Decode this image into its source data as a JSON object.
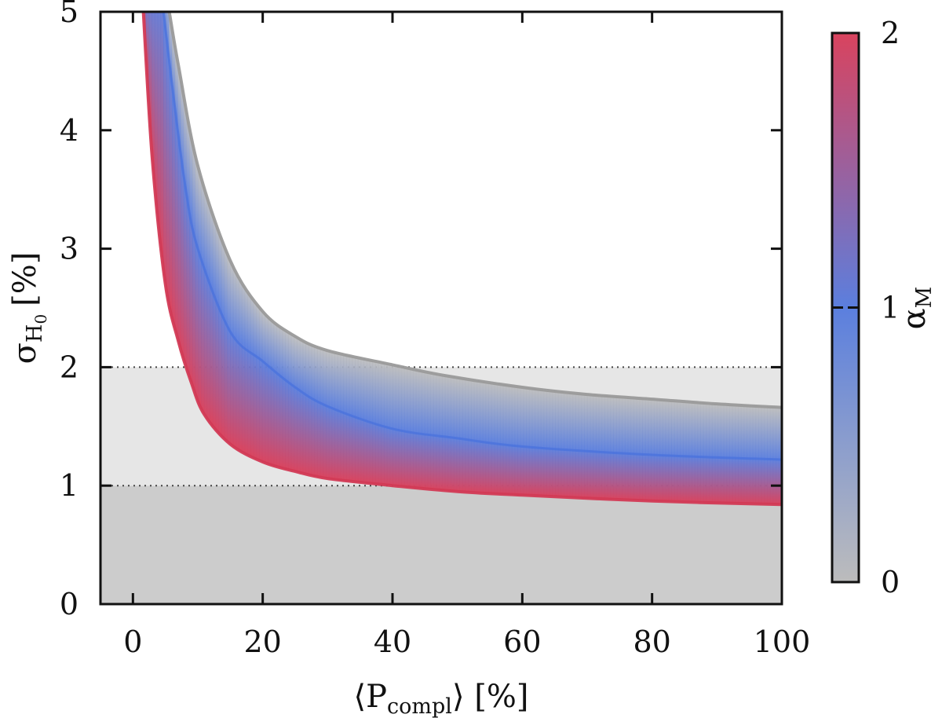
{
  "chart_data": {
    "type": "area",
    "title": "",
    "xlabel": "⟨P",
    "xlabel_sub": "compl",
    "xlabel_tail": "⟩ [%]",
    "ylabel": "σ",
    "ylabel_sub": "H",
    "ylabel_subsub": "0",
    "ylabel_tail": "[%]",
    "xlim": [
      -5,
      100
    ],
    "ylim": [
      0,
      5
    ],
    "xticks": [
      0,
      20,
      40,
      60,
      80,
      100
    ],
    "yticks": [
      0,
      1,
      2,
      3,
      4,
      5
    ],
    "x_tick_labels": [
      "0",
      "20",
      "40",
      "60",
      "80",
      "100"
    ],
    "y_tick_labels": [
      "0",
      "1",
      "2",
      "3",
      "4",
      "5"
    ],
    "grid": false,
    "shaded_bands": [
      {
        "y0": 0,
        "y1": 1,
        "color": "#cccccc"
      },
      {
        "y0": 1,
        "y1": 2,
        "color": "#e6e6e6"
      }
    ],
    "reference_lines": [
      1,
      2
    ],
    "series": [
      {
        "alpha_M": 0,
        "color": "#9a9a9a",
        "x": [
          5.6,
          7,
          10,
          15,
          20,
          25,
          30,
          40,
          48,
          60,
          70,
          80,
          90,
          100
        ],
        "y": [
          5.0,
          4.55,
          3.7,
          2.9,
          2.47,
          2.26,
          2.14,
          2.02,
          1.93,
          1.83,
          1.77,
          1.73,
          1.69,
          1.66
        ]
      },
      {
        "alpha_M": 1,
        "color": "#4a72dc",
        "x": [
          4.7,
          6,
          8,
          10,
          15,
          20,
          25,
          30,
          40,
          50,
          60,
          80,
          100
        ],
        "y": [
          5.0,
          4.4,
          3.55,
          3.0,
          2.3,
          2.05,
          1.83,
          1.67,
          1.48,
          1.4,
          1.33,
          1.26,
          1.22
        ]
      },
      {
        "alpha_M": 2,
        "color": "#d23a55",
        "x": [
          1.6,
          3,
          5,
          7,
          9,
          11,
          15,
          20,
          25,
          30,
          40,
          50,
          60,
          80,
          100
        ],
        "y": [
          5.0,
          3.75,
          2.7,
          2.22,
          1.87,
          1.6,
          1.35,
          1.2,
          1.12,
          1.06,
          1.0,
          0.95,
          0.92,
          0.87,
          0.84
        ]
      }
    ],
    "colorbar": {
      "label": "α",
      "label_sub": "M",
      "min": 0,
      "max": 2,
      "ticks": [
        0,
        1,
        2
      ],
      "tick_labels": [
        "0",
        "1",
        "2"
      ],
      "colors": [
        "#bcbcbc",
        "#5b7fde",
        "#d9435e"
      ]
    }
  }
}
